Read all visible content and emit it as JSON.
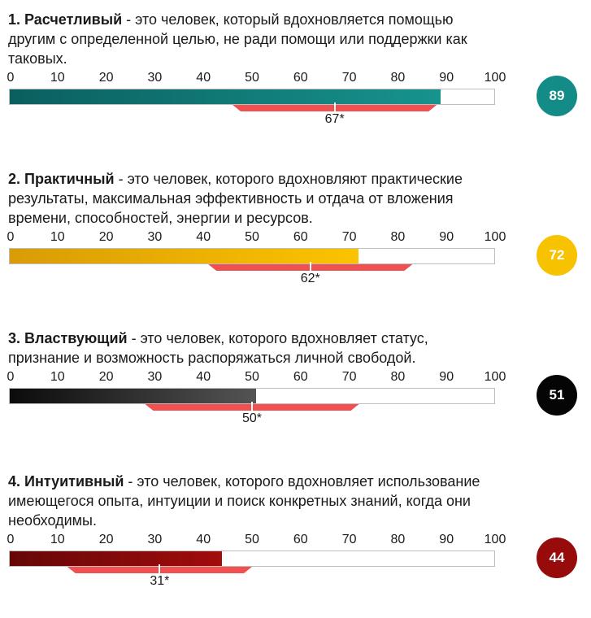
{
  "axis_ticks": [
    "0",
    "10",
    "20",
    "30",
    "40",
    "50",
    "60",
    "70",
    "80",
    "90",
    "100"
  ],
  "chart_data": {
    "type": "bar",
    "xlim": [
      0,
      100
    ],
    "items": [
      {
        "number": "1.",
        "title": "Расчетливый",
        "text_lines": [
          " - это человек, который вдохновляется помощью",
          "другим с определенной целью, не ради помощи или поддержки как",
          "таковых."
        ],
        "value": 89,
        "score_label": "89",
        "average": 67,
        "average_label": "67*",
        "range": [
          46,
          88
        ],
        "fill_from": "#0a5f5e",
        "fill_to": "#17938e",
        "badge_color": "#138b86"
      },
      {
        "number": "2.",
        "title": "Практичный",
        "text_lines": [
          " - это человек, которого вдохновляют практические",
          "результаты, максимальная эффективность и отдача от вложения",
          "времени, способностей, энергии и ресурсов."
        ],
        "value": 72,
        "score_label": "72",
        "average": 62,
        "average_label": "62*",
        "range": [
          41,
          83
        ],
        "fill_from": "#d99c06",
        "fill_to": "#fcc300",
        "badge_color": "#f7c300"
      },
      {
        "number": "3.",
        "title": "Властвующий",
        "text_lines": [
          " - это человек, которого вдохновляет статус,",
          "признание и возможность распоряжаться личной свободой."
        ],
        "value": 51,
        "score_label": "51",
        "average": 50,
        "average_label": "50*",
        "range": [
          28,
          72
        ],
        "fill_from": "#0b0b0b",
        "fill_to": "#545454",
        "badge_color": "#050505"
      },
      {
        "number": "4.",
        "title": "Интуитивный",
        "text_lines": [
          " - это человек, которого вдохновляет использование",
          "имеющегося опыта, интуиции и поиск конкретных знаний, когда они",
          "необходимы."
        ],
        "value": 44,
        "score_label": "44",
        "average": 31,
        "average_label": "31*",
        "range": [
          12,
          50
        ],
        "fill_from": "#650707",
        "fill_to": "#a20c0c",
        "badge_color": "#970b0b"
      }
    ]
  }
}
